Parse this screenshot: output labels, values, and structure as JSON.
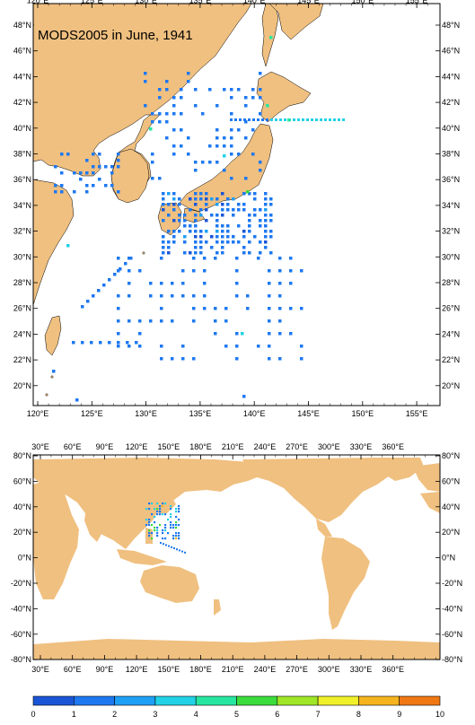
{
  "title": "MODS2005 in June, 1941",
  "regional_map": {
    "lon_labels": [
      "120°E",
      "125°E",
      "130°E",
      "135°E",
      "140°E",
      "145°E",
      "150°E",
      "155°E"
    ],
    "lat_labels": [
      "48°N",
      "46°N",
      "44°N",
      "42°N",
      "40°N",
      "38°N",
      "36°N",
      "34°N",
      "32°N",
      "30°N",
      "28°N",
      "26°N",
      "24°N",
      "22°N",
      "20°N"
    ]
  },
  "global_map": {
    "lon_labels": [
      "30°E",
      "60°E",
      "90°E",
      "120°E",
      "150°E",
      "180°E",
      "210°E",
      "240°E",
      "270°E",
      "300°E",
      "330°E",
      "360°E"
    ],
    "lat_labels": [
      "80°N",
      "60°N",
      "40°N",
      "20°N",
      "0°N",
      "-20°N",
      "-40°N",
      "-60°N",
      "-80°N"
    ]
  },
  "colorbar": {
    "labels": [
      "0",
      "1",
      "2",
      "3",
      "4",
      "5",
      "6",
      "7",
      "8",
      "9",
      "10"
    ],
    "colors": [
      "#1a55d6",
      "#1e78f0",
      "#1ea0f5",
      "#22d2e6",
      "#28e6a0",
      "#3cdc3c",
      "#a0e628",
      "#f0f028",
      "#f5b41e",
      "#f07814"
    ]
  },
  "colors": {
    "land": "#f0c080",
    "ocean": "#ffffff",
    "obs_default": "#1e78f0"
  }
}
